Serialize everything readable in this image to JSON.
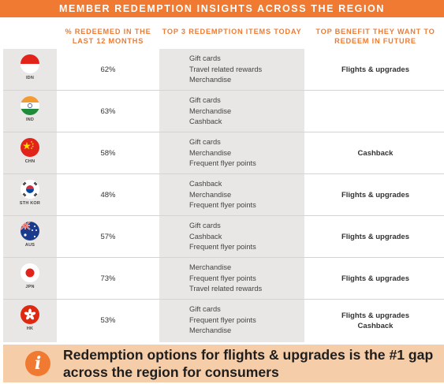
{
  "banner": {
    "title": "MEMBER REDEMPTION INSIGHTS ACROSS THE REGION"
  },
  "headers": {
    "percent": "% REDEEMED IN THE LAST 12 MONTHS",
    "top3": "TOP 3 REDEMPTION ITEMS TODAY",
    "future": "TOP BENEFIT THEY WANT TO REDEEM IN FUTURE"
  },
  "rows": [
    {
      "code": "IDN",
      "flag_icon": "indonesia-flag-icon",
      "percent": "62%",
      "items": [
        "Gift cards",
        "Travel related rewards",
        "Merchandise"
      ],
      "future": "Flights & upgrades"
    },
    {
      "code": "IND",
      "flag_icon": "india-flag-icon",
      "percent": "63%",
      "items": [
        "Gift cards",
        "Merchandise",
        "Cashback"
      ],
      "future": ""
    },
    {
      "code": "CHN",
      "flag_icon": "china-flag-icon",
      "percent": "58%",
      "items": [
        "Gift cards",
        "Merchandise",
        "Frequent flyer points"
      ],
      "future": "Cashback"
    },
    {
      "code": "STH KOR",
      "flag_icon": "south-korea-flag-icon",
      "percent": "48%",
      "items": [
        "Cashback",
        "Merchandise",
        "Frequent flyer points"
      ],
      "future": "Flights & upgrades"
    },
    {
      "code": "AUS",
      "flag_icon": "australia-flag-icon",
      "percent": "57%",
      "items": [
        "Gift cards",
        "Cashback",
        "Frequent flyer points"
      ],
      "future": "Flights & upgrades"
    },
    {
      "code": "JPN",
      "flag_icon": "japan-flag-icon",
      "percent": "73%",
      "items": [
        "Merchandise",
        "Frequent flyer points",
        "Travel related rewards"
      ],
      "future": "Flights & upgrades"
    },
    {
      "code": "HK",
      "flag_icon": "hong-kong-flag-icon",
      "percent": "53%",
      "items": [
        "Gift cards",
        "Frequent flyer points",
        "Merchandise"
      ],
      "future": "Flights & upgrades Cashback"
    }
  ],
  "callout": {
    "icon": "info-icon",
    "glyph": "i",
    "text": "Redemption options for flights & upgrades is the #1 gap across the region for consumers"
  },
  "colors": {
    "accent": "#f07a31",
    "callout_bg": "#f5cda9",
    "column_bg": "#e9e7e5"
  }
}
